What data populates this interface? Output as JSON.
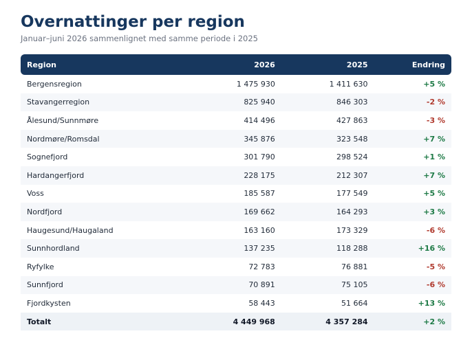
{
  "header": {
    "title": "Overnattinger per region",
    "subtitle": "Januar–juni 2026 sammenlignet med samme periode i 2025"
  },
  "table": {
    "columns": [
      "Region",
      "2026",
      "2025",
      "Endring"
    ],
    "rows": [
      {
        "region": "Bergensregion",
        "y2026": "1 475 930",
        "y2025": "1 411 630",
        "change": "+5 %",
        "dir": "pos"
      },
      {
        "region": "Stavangerregion",
        "y2026": "825 940",
        "y2025": "846 303",
        "change": "-2 %",
        "dir": "neg"
      },
      {
        "region": "Ålesund/Sunnmøre",
        "y2026": "414 496",
        "y2025": "427 863",
        "change": "-3 %",
        "dir": "neg"
      },
      {
        "region": "Nordmøre/Romsdal",
        "y2026": "345 876",
        "y2025": "323 548",
        "change": "+7 %",
        "dir": "pos"
      },
      {
        "region": "Sognefjord",
        "y2026": "301 790",
        "y2025": "298 524",
        "change": "+1 %",
        "dir": "pos"
      },
      {
        "region": "Hardangerfjord",
        "y2026": "228 175",
        "y2025": "212 307",
        "change": "+7 %",
        "dir": "pos"
      },
      {
        "region": "Voss",
        "y2026": "185 587",
        "y2025": "177 549",
        "change": "+5 %",
        "dir": "pos"
      },
      {
        "region": "Nordfjord",
        "y2026": "169 662",
        "y2025": "164 293",
        "change": "+3 %",
        "dir": "pos"
      },
      {
        "region": "Haugesund/Haugaland",
        "y2026": "163 160",
        "y2025": "173 329",
        "change": "-6 %",
        "dir": "neg"
      },
      {
        "region": "Sunnhordland",
        "y2026": "137 235",
        "y2025": "118 288",
        "change": "+16 %",
        "dir": "pos"
      },
      {
        "region": "Ryfylke",
        "y2026": "72 783",
        "y2025": "76 881",
        "change": "-5 %",
        "dir": "neg"
      },
      {
        "region": "Sunnfjord",
        "y2026": "70 891",
        "y2025": "75 105",
        "change": "-6 %",
        "dir": "neg"
      },
      {
        "region": "Fjordkysten",
        "y2026": "58 443",
        "y2025": "51 664",
        "change": "+13 %",
        "dir": "pos"
      }
    ],
    "total": {
      "region": "Totalt",
      "y2026": "4 449 968",
      "y2025": "4 357 284",
      "change": "+2 %",
      "dir": "pos"
    }
  },
  "colors": {
    "header_bg": "#17375e",
    "positive": "#1e7a46",
    "negative": "#b03a2e"
  }
}
